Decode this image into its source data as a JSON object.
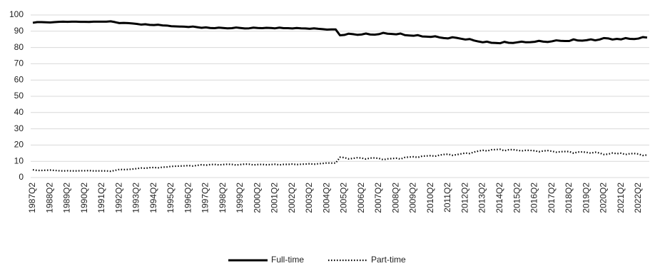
{
  "chart_data": {
    "type": "line",
    "categories": [
      "1987Q2",
      null,
      null,
      null,
      "1988Q2",
      null,
      null,
      null,
      "1989Q2",
      null,
      null,
      null,
      "1990Q2",
      null,
      null,
      null,
      "1991Q2",
      null,
      null,
      null,
      "1992Q2",
      null,
      null,
      null,
      "1993Q2",
      null,
      null,
      null,
      "1994Q2",
      null,
      null,
      null,
      "1995Q2",
      null,
      null,
      null,
      "1996Q2",
      null,
      null,
      null,
      "1997Q2",
      null,
      null,
      null,
      "1998Q2",
      null,
      null,
      null,
      "1999Q2",
      null,
      null,
      null,
      "2000Q2",
      null,
      null,
      null,
      "2001Q2",
      null,
      null,
      null,
      "2002Q2",
      null,
      null,
      null,
      "2003Q2",
      null,
      null,
      null,
      "2004Q2",
      null,
      null,
      null,
      "2005Q2",
      null,
      null,
      null,
      "2006Q2",
      null,
      null,
      null,
      "2007Q2",
      null,
      null,
      null,
      "2008Q2",
      null,
      null,
      null,
      "2009Q2",
      null,
      null,
      null,
      "2010Q2",
      null,
      null,
      null,
      "2011Q2",
      null,
      null,
      null,
      "2012Q2",
      null,
      null,
      null,
      "2013Q2",
      null,
      null,
      null,
      "2014Q2",
      null,
      null,
      null,
      "2015Q2",
      null,
      null,
      null,
      "2016Q2",
      null,
      null,
      null,
      "2017Q2",
      null,
      null,
      null,
      "2018Q2",
      null,
      null,
      null,
      "2019Q2",
      null,
      null,
      null,
      "2020Q2",
      null,
      null,
      null,
      "2021Q2",
      null,
      null,
      null,
      "2022Q2",
      null,
      null
    ],
    "series": [
      {
        "name": "Full-time",
        "color": "#000000",
        "line_style": "solid",
        "values": [
          95.2,
          95.6,
          95.6,
          95.5,
          95.4,
          95.6,
          95.8,
          95.9,
          95.8,
          95.9,
          95.9,
          95.8,
          95.8,
          95.7,
          95.9,
          95.9,
          95.9,
          95.9,
          96.1,
          95.6,
          95.0,
          95.1,
          95.0,
          94.8,
          94.5,
          94.1,
          94.3,
          93.9,
          93.8,
          94.0,
          93.6,
          93.5,
          93.1,
          93.0,
          92.9,
          92.8,
          92.6,
          92.9,
          92.5,
          92.1,
          92.4,
          92.0,
          91.9,
          92.2,
          92.0,
          91.8,
          91.9,
          92.3,
          92.0,
          91.7,
          91.8,
          92.2,
          92.0,
          91.9,
          92.1,
          92.0,
          91.8,
          92.2,
          91.9,
          91.9,
          91.7,
          92.0,
          91.8,
          91.7,
          91.5,
          91.8,
          91.5,
          91.3,
          91.0,
          91.1,
          91.1,
          87.5,
          87.7,
          88.5,
          88.2,
          87.8,
          88.0,
          88.6,
          88.0,
          87.9,
          88.2,
          89.0,
          88.5,
          88.3,
          88.1,
          88.6,
          87.6,
          87.4,
          87.2,
          87.6,
          86.8,
          86.7,
          86.5,
          86.9,
          86.2,
          85.8,
          85.6,
          86.3,
          85.9,
          85.4,
          84.9,
          85.2,
          84.3,
          83.7,
          83.2,
          83.6,
          82.9,
          82.8,
          82.6,
          83.5,
          82.9,
          82.8,
          83.2,
          83.6,
          83.2,
          83.3,
          83.5,
          84.1,
          83.6,
          83.4,
          83.8,
          84.4,
          84.1,
          84.0,
          84.0,
          85.0,
          84.3,
          84.2,
          84.5,
          85.0,
          84.4,
          84.9,
          85.8,
          85.6,
          84.9,
          85.3,
          85.0,
          85.8,
          85.3,
          85.2,
          85.5,
          86.4,
          86.1
        ]
      },
      {
        "name": "Part-time",
        "color": "#000000",
        "line_style": "dotted",
        "values": [
          4.8,
          4.4,
          4.4,
          4.5,
          4.6,
          4.4,
          4.2,
          4.1,
          4.2,
          4.1,
          4.1,
          4.2,
          4.2,
          4.3,
          4.1,
          4.1,
          4.1,
          4.1,
          3.9,
          4.4,
          5.0,
          4.9,
          5.0,
          5.2,
          5.5,
          5.9,
          5.7,
          6.1,
          6.2,
          6.0,
          6.4,
          6.5,
          6.9,
          7.0,
          7.1,
          7.2,
          7.4,
          7.1,
          7.5,
          7.9,
          7.6,
          8.0,
          8.1,
          7.8,
          8.0,
          8.2,
          8.1,
          7.7,
          8.0,
          8.3,
          8.2,
          7.8,
          8.0,
          8.1,
          7.9,
          8.0,
          8.2,
          7.8,
          8.1,
          8.1,
          8.3,
          8.0,
          8.2,
          8.3,
          8.5,
          8.2,
          8.5,
          8.7,
          9.0,
          8.9,
          8.9,
          12.5,
          12.3,
          11.5,
          11.8,
          12.2,
          12.0,
          11.4,
          12.0,
          12.1,
          11.8,
          11.0,
          11.5,
          11.7,
          11.9,
          11.4,
          12.4,
          12.6,
          12.8,
          12.4,
          13.2,
          13.3,
          13.5,
          13.1,
          13.8,
          14.2,
          14.4,
          13.7,
          14.1,
          14.6,
          15.1,
          14.8,
          15.7,
          16.3,
          16.8,
          16.4,
          17.1,
          17.2,
          17.4,
          16.5,
          17.1,
          17.2,
          16.8,
          16.4,
          16.8,
          16.7,
          16.5,
          15.9,
          16.4,
          16.6,
          16.2,
          15.6,
          15.9,
          16.0,
          16.0,
          15.0,
          15.7,
          15.8,
          15.5,
          15.0,
          15.6,
          15.1,
          14.2,
          14.4,
          15.1,
          14.7,
          15.0,
          14.2,
          14.7,
          14.8,
          14.5,
          13.6,
          13.9
        ]
      }
    ],
    "ylim": [
      0,
      100
    ],
    "yticks": [
      0,
      10,
      20,
      30,
      40,
      50,
      60,
      70,
      80,
      90,
      100
    ],
    "grid": true,
    "legend": "bottom"
  }
}
